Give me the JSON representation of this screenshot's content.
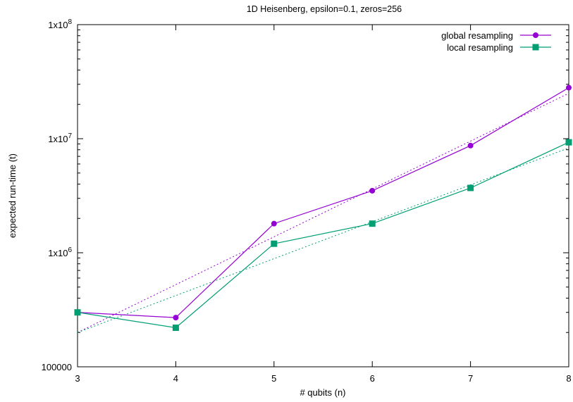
{
  "chart_data": {
    "type": "line",
    "title": "1D Heisenberg, epsilon=0.1, zeros=256",
    "xlabel": "# qubits (n)",
    "ylabel": "expected run-time (t)",
    "xlim": [
      3,
      8
    ],
    "ylim": [
      100000,
      100000000
    ],
    "yscale": "log",
    "grid": false,
    "legend_position": "top-right",
    "x_ticks": [
      {
        "value": 3,
        "label": "3"
      },
      {
        "value": 4,
        "label": "4"
      },
      {
        "value": 5,
        "label": "5"
      },
      {
        "value": 6,
        "label": "6"
      },
      {
        "value": 7,
        "label": "7"
      },
      {
        "value": 8,
        "label": "8"
      }
    ],
    "y_ticks": [
      {
        "value": 100000,
        "label": "100000"
      },
      {
        "value": 1000000,
        "label": "1x10",
        "sup": "6"
      },
      {
        "value": 10000000,
        "label": "1x10",
        "sup": "7"
      },
      {
        "value": 100000000,
        "label": "1x10",
        "sup": "8"
      }
    ],
    "x": [
      3,
      4,
      5,
      6,
      7,
      8
    ],
    "series": [
      {
        "name": "global resampling",
        "color": "#9400d3",
        "marker": "circle",
        "values": [
          300000,
          270000,
          1800000,
          3500000,
          8700000,
          28000000
        ],
        "fit": {
          "from": [
            3,
            200000
          ],
          "to": [
            8,
            25000000
          ]
        }
      },
      {
        "name": "local resampling",
        "color": "#009e73",
        "marker": "square",
        "values": [
          300000,
          220000,
          1200000,
          1800000,
          3700000,
          9300000
        ],
        "fit": {
          "from": [
            3,
            200000
          ],
          "to": [
            8,
            8300000
          ]
        }
      }
    ]
  }
}
